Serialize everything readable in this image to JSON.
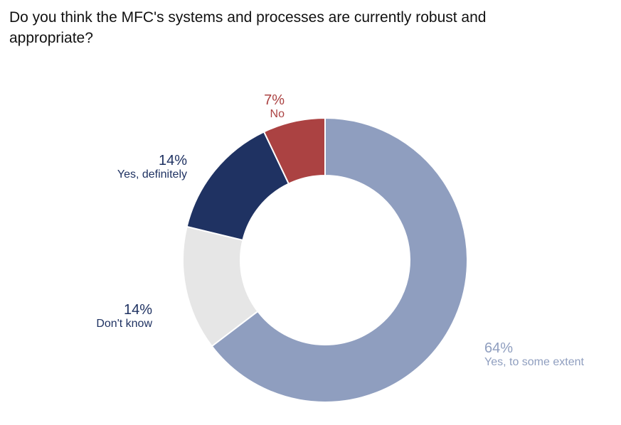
{
  "chart_data": {
    "type": "pie",
    "variant": "donut",
    "title": "Do you think the MFC's systems and processes are currently robust and appropriate?",
    "categories": [
      "Yes, to some extent",
      "Don't know",
      "Yes, definitely",
      "No"
    ],
    "values": [
      64,
      14,
      14,
      7
    ],
    "labels": [
      "64%",
      "14%",
      "14%",
      "7%"
    ],
    "colors": [
      "#8f9ebf",
      "#e6e6e6",
      "#1f3262",
      "#ab4242"
    ],
    "label_colors": [
      "#8f9ebf",
      "#1f3262",
      "#1f3262",
      "#ab4242"
    ],
    "start": "top",
    "direction": "clockwise"
  }
}
